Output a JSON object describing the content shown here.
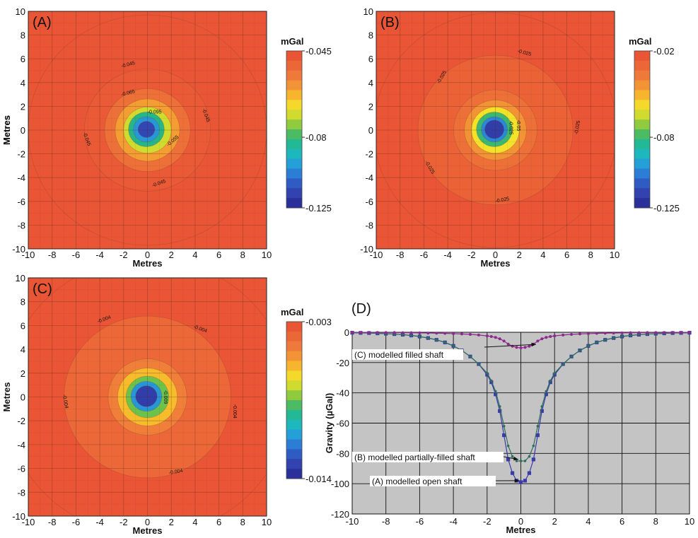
{
  "chart_data": [
    {
      "type": "heatmap",
      "panel_label": "(A)",
      "xlabel": "Metres",
      "ylabel": "Metres",
      "xlim": [
        -10,
        10
      ],
      "ylim": [
        -10,
        10
      ],
      "x_ticks": [
        "-10",
        "-8",
        "-6",
        "-4",
        "-2",
        "0",
        "2",
        "4",
        "6",
        "8",
        "10"
      ],
      "y_ticks": [
        "10",
        "8",
        "6",
        "4",
        "2",
        "0",
        "-2",
        "-4",
        "-6",
        "-8",
        "-10"
      ],
      "colorbar": {
        "unit": "mGal",
        "labels": [
          "-0.045",
          "-0.08",
          "-0.125"
        ],
        "range": [
          -0.125,
          -0.045
        ]
      },
      "contour_labels": [
        "-0.045",
        "-0.045",
        "-0.045",
        "-0.045",
        "-0.065",
        "-0.055",
        "-0.095"
      ],
      "grid": true
    },
    {
      "type": "heatmap",
      "panel_label": "(B)",
      "xlabel": "Metres",
      "ylabel": "Metres",
      "xlim": [
        -10,
        10
      ],
      "ylim": [
        -10,
        10
      ],
      "x_ticks": [
        "-10",
        "-8",
        "-6",
        "-4",
        "-2",
        "0",
        "2",
        "4",
        "6",
        "8",
        "10"
      ],
      "y_ticks": [
        "10",
        "8",
        "6",
        "4",
        "2",
        "0",
        "-2",
        "-4",
        "-6",
        "-8",
        "-10"
      ],
      "colorbar": {
        "unit": "mGal",
        "labels": [
          "-0.02",
          "-0.08",
          "-0.125"
        ],
        "range": [
          -0.125,
          -0.02
        ]
      },
      "contour_labels": [
        "-0.025",
        "-0.025",
        "-0.025",
        "-0.025",
        "-0.025",
        "-0.025",
        "-0.05"
      ],
      "grid": true
    },
    {
      "type": "heatmap",
      "panel_label": "(C)",
      "xlabel": "Metres",
      "ylabel": "Metres",
      "xlim": [
        -10,
        10
      ],
      "ylim": [
        -10,
        10
      ],
      "x_ticks": [
        "-10",
        "-8",
        "-6",
        "-4",
        "-2",
        "0",
        "2",
        "4",
        "6",
        "8",
        "10"
      ],
      "y_ticks": [
        "10",
        "8",
        "6",
        "4",
        "2",
        "0",
        "-2",
        "-4",
        "-6",
        "-8",
        "-10"
      ],
      "colorbar": {
        "unit": "mGal",
        "labels": [
          "-0.003",
          "-0.014"
        ],
        "range": [
          -0.014,
          -0.003
        ]
      },
      "contour_labels": [
        "-0.004",
        "-0.004",
        "-0.004",
        "-0.004",
        "-0.004",
        "-0.009"
      ],
      "grid": true
    },
    {
      "type": "line",
      "panel_label": "(D)",
      "xlabel": "Metres",
      "ylabel": "Gravity (µGal)",
      "xlim": [
        -10,
        10
      ],
      "ylim": [
        -120,
        0
      ],
      "x_ticks": [
        "-10",
        "-8",
        "-6",
        "-4",
        "-2",
        "0",
        "2",
        "4",
        "6",
        "8",
        "10"
      ],
      "y_ticks": [
        "0",
        "-20",
        "-40",
        "-60",
        "-80",
        "-100",
        "-120"
      ],
      "grid": true,
      "x": [
        -10,
        -9.5,
        -9,
        -8.5,
        -8,
        -7.5,
        -7,
        -6.5,
        -6,
        -5.5,
        -5,
        -4.5,
        -4,
        -3.5,
        -3,
        -2.5,
        -2,
        -1.75,
        -1.5,
        -1.25,
        -1,
        -0.75,
        -0.5,
        -0.25,
        0,
        0.25,
        0.5,
        0.75,
        1,
        1.25,
        1.5,
        1.75,
        2,
        2.5,
        3,
        3.5,
        4,
        4.5,
        5,
        5.5,
        6,
        6.5,
        7,
        7.5,
        8,
        8.5,
        9,
        9.5,
        10
      ],
      "series": [
        {
          "name": "(A) modelled open shaft",
          "color": "#3a3aa8",
          "values": [
            -0.3,
            -0.4,
            -0.5,
            -0.7,
            -0.9,
            -1.2,
            -1.6,
            -2.1,
            -2.8,
            -3.8,
            -5,
            -6.7,
            -9,
            -12,
            -16,
            -21,
            -28,
            -33,
            -41,
            -52,
            -68,
            -84,
            -93,
            -98,
            -99,
            -98,
            -93,
            -84,
            -68,
            -52,
            -41,
            -33,
            -28,
            -21,
            -16,
            -12,
            -9,
            -6.7,
            -5,
            -3.8,
            -2.8,
            -2.1,
            -1.6,
            -1.2,
            -0.9,
            -0.7,
            -0.5,
            -0.4,
            -0.3
          ]
        },
        {
          "name": "(B) modelled partially-filled shaft",
          "color": "#2e6e5a",
          "values": [
            -0.3,
            -0.4,
            -0.5,
            -0.7,
            -0.9,
            -1.2,
            -1.6,
            -2.1,
            -2.8,
            -3.8,
            -5,
            -6.7,
            -9,
            -12,
            -16,
            -21,
            -27,
            -32,
            -39,
            -49,
            -62,
            -75,
            -82,
            -85,
            -85,
            -85,
            -82,
            -75,
            -62,
            -49,
            -39,
            -32,
            -27,
            -21,
            -16,
            -12,
            -9,
            -6.7,
            -5,
            -3.8,
            -2.8,
            -2.1,
            -1.6,
            -1.2,
            -0.9,
            -0.7,
            -0.5,
            -0.4,
            -0.3
          ]
        },
        {
          "name": "(C) modelled filled shaft",
          "color": "#8e2a8e",
          "values": [
            -0.1,
            -0.1,
            -0.1,
            -0.2,
            -0.2,
            -0.2,
            -0.3,
            -0.3,
            -0.4,
            -0.5,
            -0.6,
            -0.7,
            -0.9,
            -1.1,
            -1.4,
            -1.8,
            -2.4,
            -2.8,
            -3.4,
            -4.3,
            -5.8,
            -7.8,
            -9.2,
            -10,
            -10.3,
            -10,
            -9.2,
            -7.8,
            -5.8,
            -4.3,
            -3.4,
            -2.8,
            -2.4,
            -1.8,
            -1.4,
            -1.1,
            -0.9,
            -0.7,
            -0.6,
            -0.5,
            -0.4,
            -0.3,
            -0.3,
            -0.2,
            -0.2,
            -0.2,
            -0.1,
            -0.1,
            -0.1
          ]
        }
      ]
    }
  ]
}
